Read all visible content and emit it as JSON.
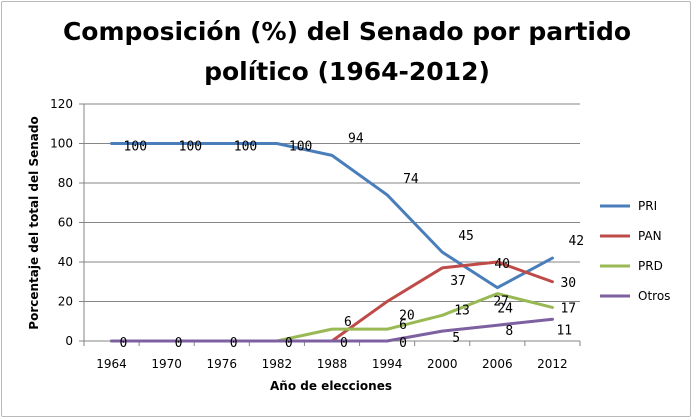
{
  "chart_data": {
    "type": "line",
    "title_line1": "Composición (%) del Senado por partido",
    "title_line2": "político (1964-2012)",
    "xlabel": "Año de elecciones",
    "ylabel": "Porcentaje del total del Senado",
    "categories": [
      "1964",
      "1970",
      "1976",
      "1982",
      "1988",
      "1994",
      "2000",
      "2006",
      "2012"
    ],
    "ylim": [
      0,
      120
    ],
    "yticks": [
      0,
      20,
      40,
      60,
      80,
      100,
      120
    ],
    "grid": true,
    "legend_position": "right",
    "series": [
      {
        "name": "PRI",
        "color": "#4a7ebb",
        "values": [
          100,
          100,
          100,
          100,
          94,
          74,
          45,
          27,
          42
        ]
      },
      {
        "name": "PAN",
        "color": "#be4b48",
        "values": [
          0,
          0,
          0,
          0,
          0,
          20,
          37,
          40,
          30
        ]
      },
      {
        "name": "PRD",
        "color": "#98b954",
        "values": [
          0,
          0,
          0,
          0,
          6,
          6,
          13,
          24,
          17
        ]
      },
      {
        "name": "Otros",
        "color": "#7d60a0",
        "values": [
          0,
          0,
          0,
          0,
          0,
          0,
          5,
          8,
          11
        ]
      }
    ],
    "data_labels": [
      {
        "series": 0,
        "index": 0,
        "text": "100"
      },
      {
        "series": 0,
        "index": 1,
        "text": "100"
      },
      {
        "series": 0,
        "index": 2,
        "text": "100"
      },
      {
        "series": 0,
        "index": 3,
        "text": "100"
      },
      {
        "series": 0,
        "index": 4,
        "text": "94"
      },
      {
        "series": 0,
        "index": 5,
        "text": "74"
      },
      {
        "series": 0,
        "index": 6,
        "text": "45"
      },
      {
        "series": 0,
        "index": 7,
        "text": "27"
      },
      {
        "series": 0,
        "index": 8,
        "text": "42"
      },
      {
        "series": 1,
        "index": 0,
        "text": "0"
      },
      {
        "series": 1,
        "index": 1,
        "text": "0"
      },
      {
        "series": 1,
        "index": 2,
        "text": "0"
      },
      {
        "series": 1,
        "index": 3,
        "text": "0"
      },
      {
        "series": 1,
        "index": 4,
        "text": "0"
      },
      {
        "series": 1,
        "index": 5,
        "text": "20"
      },
      {
        "series": 1,
        "index": 6,
        "text": "37"
      },
      {
        "series": 1,
        "index": 7,
        "text": "40"
      },
      {
        "series": 1,
        "index": 8,
        "text": "30"
      },
      {
        "series": 2,
        "index": 4,
        "text": "6"
      },
      {
        "series": 2,
        "index": 5,
        "text": "6"
      },
      {
        "series": 2,
        "index": 6,
        "text": "13"
      },
      {
        "series": 2,
        "index": 7,
        "text": "24"
      },
      {
        "series": 2,
        "index": 8,
        "text": "17"
      },
      {
        "series": 3,
        "index": 5,
        "text": "0"
      },
      {
        "series": 3,
        "index": 6,
        "text": "5"
      },
      {
        "series": 3,
        "index": 7,
        "text": "8"
      },
      {
        "series": 3,
        "index": 8,
        "text": "11"
      }
    ]
  }
}
